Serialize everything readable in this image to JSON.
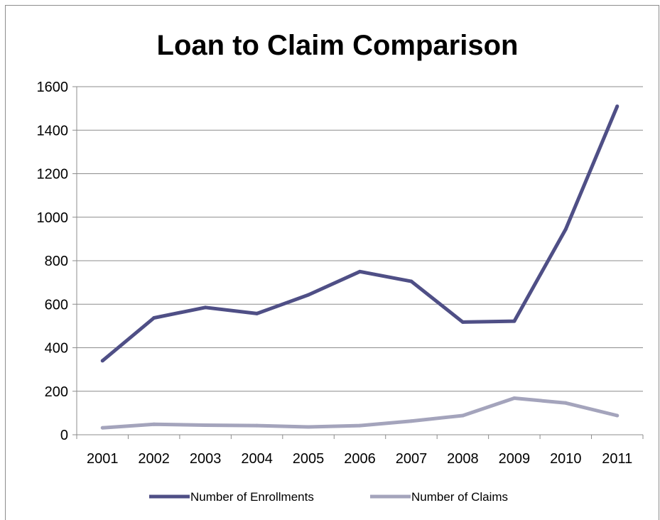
{
  "chart_data": {
    "type": "line",
    "title": "Loan to Claim Comparison",
    "xlabel": "",
    "ylabel": "",
    "x": [
      "2001",
      "2002",
      "2003",
      "2004",
      "2005",
      "2006",
      "2007",
      "2008",
      "2009",
      "2010",
      "2011"
    ],
    "ylim": [
      0,
      1600
    ],
    "yticks": [
      0,
      200,
      400,
      600,
      800,
      1000,
      1200,
      1400,
      1600
    ],
    "ytick_labels": [
      "0",
      "200",
      "400",
      "600",
      "800",
      "1000",
      "1200",
      "1400",
      "1600"
    ],
    "grid": true,
    "legend_position": "bottom",
    "series": [
      {
        "name": "Number of Enrollments",
        "color": "#4f4f86",
        "values": [
          340,
          537,
          585,
          557,
          643,
          750,
          705,
          518,
          522,
          945,
          1510
        ]
      },
      {
        "name": "Number of Claims",
        "color": "#a4a4bc",
        "values": [
          32,
          48,
          44,
          42,
          36,
          42,
          63,
          88,
          168,
          146,
          88
        ]
      }
    ]
  }
}
